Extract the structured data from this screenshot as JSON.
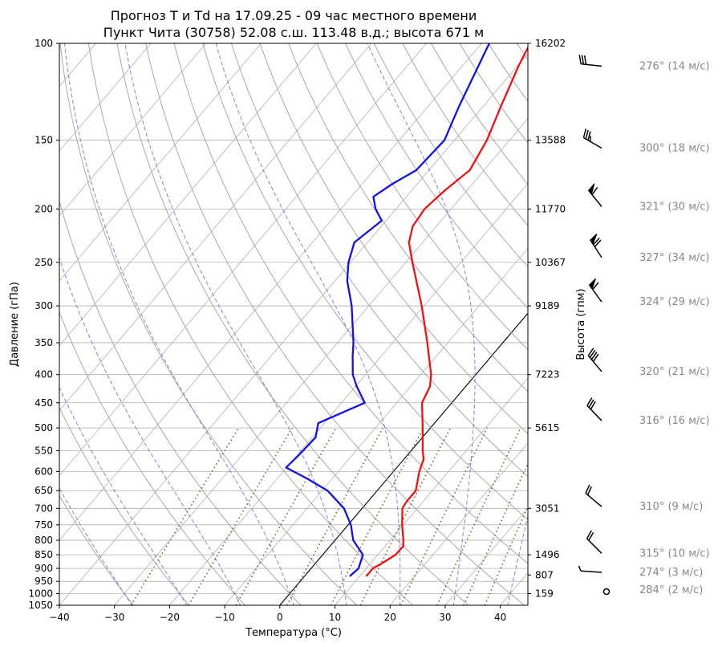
{
  "chart_data": {
    "type": "line",
    "title": "Прогноз T и Td на 17.09.25 - 09 час местного времени",
    "subtitle": "Пункт Чита (30758) 52.08 с.ш. 113.48 в.д.; высота 671 м",
    "xlabel": "Температура (°C)",
    "ylabel": "Давление (гПа)",
    "ylabel_right": "Высота (гпм)",
    "xlim": [
      -40,
      45
    ],
    "ylim": [
      1050,
      100
    ],
    "y_scale": "log",
    "grid": true,
    "x_ticks": [
      -40,
      -30,
      -20,
      -10,
      0,
      10,
      20,
      30,
      40
    ],
    "pressure_ticks": [
      100,
      150,
      200,
      250,
      300,
      350,
      400,
      450,
      500,
      550,
      600,
      650,
      700,
      750,
      800,
      850,
      900,
      950,
      1000,
      1050
    ],
    "heights": [
      {
        "p": 100,
        "h": "16202"
      },
      {
        "p": 150,
        "h": "13588"
      },
      {
        "p": 200,
        "h": "11770"
      },
      {
        "p": 250,
        "h": "10367"
      },
      {
        "p": 300,
        "h": "9189"
      },
      {
        "p": 400,
        "h": "7223"
      },
      {
        "p": 500,
        "h": "5615"
      },
      {
        "p": 700,
        "h": "3051"
      },
      {
        "p": 850,
        "h": "1496"
      },
      {
        "p": 925,
        "h": "807"
      },
      {
        "p": 1000,
        "h": "159"
      }
    ],
    "series": [
      {
        "key": "temperature",
        "color": "#ee1111",
        "points": [
          {
            "p": 930,
            "t": 11.2
          },
          {
            "p": 900,
            "t": 11.2
          },
          {
            "p": 880,
            "t": 12.1
          },
          {
            "p": 850,
            "t": 13.2
          },
          {
            "p": 820,
            "t": 13.3
          },
          {
            "p": 800,
            "t": 12.4
          },
          {
            "p": 750,
            "t": 9.8
          },
          {
            "p": 700,
            "t": 7.3
          },
          {
            "p": 680,
            "t": 7.0
          },
          {
            "p": 650,
            "t": 7.0
          },
          {
            "p": 600,
            "t": 4.7
          },
          {
            "p": 570,
            "t": 3.6
          },
          {
            "p": 550,
            "t": 2.1
          },
          {
            "p": 500,
            "t": -1.4
          },
          {
            "p": 450,
            "t": -5.4
          },
          {
            "p": 420,
            "t": -6.5
          },
          {
            "p": 400,
            "t": -8.1
          },
          {
            "p": 350,
            "t": -13.7
          },
          {
            "p": 300,
            "t": -20.4
          },
          {
            "p": 250,
            "t": -28.8
          },
          {
            "p": 230,
            "t": -32.5
          },
          {
            "p": 215,
            "t": -34.3
          },
          {
            "p": 200,
            "t": -34.8
          },
          {
            "p": 185,
            "t": -34.0
          },
          {
            "p": 170,
            "t": -32.6
          },
          {
            "p": 150,
            "t": -34.1
          },
          {
            "p": 130,
            "t": -36.8
          },
          {
            "p": 110,
            "t": -39.8
          },
          {
            "p": 100,
            "t": -41.2
          }
        ]
      },
      {
        "key": "dewpoint",
        "color": "#1111ee",
        "points": [
          {
            "p": 930,
            "t": 8.2
          },
          {
            "p": 900,
            "t": 8.6
          },
          {
            "p": 850,
            "t": 7.3
          },
          {
            "p": 800,
            "t": 3.3
          },
          {
            "p": 750,
            "t": 0.5
          },
          {
            "p": 700,
            "t": -3.3
          },
          {
            "p": 650,
            "t": -9.0
          },
          {
            "p": 620,
            "t": -14.2
          },
          {
            "p": 590,
            "t": -20.1
          },
          {
            "p": 560,
            "t": -19.7
          },
          {
            "p": 520,
            "t": -19.4
          },
          {
            "p": 490,
            "t": -21.1
          },
          {
            "p": 450,
            "t": -15.8
          },
          {
            "p": 420,
            "t": -19.8
          },
          {
            "p": 400,
            "t": -22.3
          },
          {
            "p": 370,
            "t": -25.2
          },
          {
            "p": 350,
            "t": -27.1
          },
          {
            "p": 300,
            "t": -33.1
          },
          {
            "p": 270,
            "t": -37.8
          },
          {
            "p": 250,
            "t": -40.4
          },
          {
            "p": 230,
            "t": -42.4
          },
          {
            "p": 210,
            "t": -40.8
          },
          {
            "p": 200,
            "t": -43.7
          },
          {
            "p": 190,
            "t": -46.0
          },
          {
            "p": 180,
            "t": -44.5
          },
          {
            "p": 170,
            "t": -42.3
          },
          {
            "p": 150,
            "t": -41.8
          },
          {
            "p": 130,
            "t": -44.4
          },
          {
            "p": 100,
            "t": -48.6
          }
        ]
      }
    ],
    "winds": [
      {
        "p": 110,
        "dir": 276,
        "speed": 14,
        "label": "276° (14 м/с)"
      },
      {
        "p": 155,
        "dir": 300,
        "speed": 18,
        "label": "300° (18 м/с)"
      },
      {
        "p": 198,
        "dir": 321,
        "speed": 30,
        "label": "321° (30 м/с)"
      },
      {
        "p": 245,
        "dir": 327,
        "speed": 34,
        "label": "327° (34 м/с)"
      },
      {
        "p": 295,
        "dir": 324,
        "speed": 29,
        "label": "324° (29 м/с)"
      },
      {
        "p": 395,
        "dir": 320,
        "speed": 21,
        "label": "320° (21 м/с)"
      },
      {
        "p": 485,
        "dir": 316,
        "speed": 16,
        "label": "316° (16 м/с)"
      },
      {
        "p": 695,
        "dir": 310,
        "speed": 9,
        "label": "310° (9 м/с)"
      },
      {
        "p": 845,
        "dir": 315,
        "speed": 10,
        "label": "315° (10 м/с)"
      },
      {
        "p": 915,
        "dir": 274,
        "speed": 3,
        "label": "274° (3 м/с)"
      },
      {
        "p": 985,
        "dir": 284,
        "speed": 2,
        "label": "284° (2 м/с)"
      }
    ]
  }
}
